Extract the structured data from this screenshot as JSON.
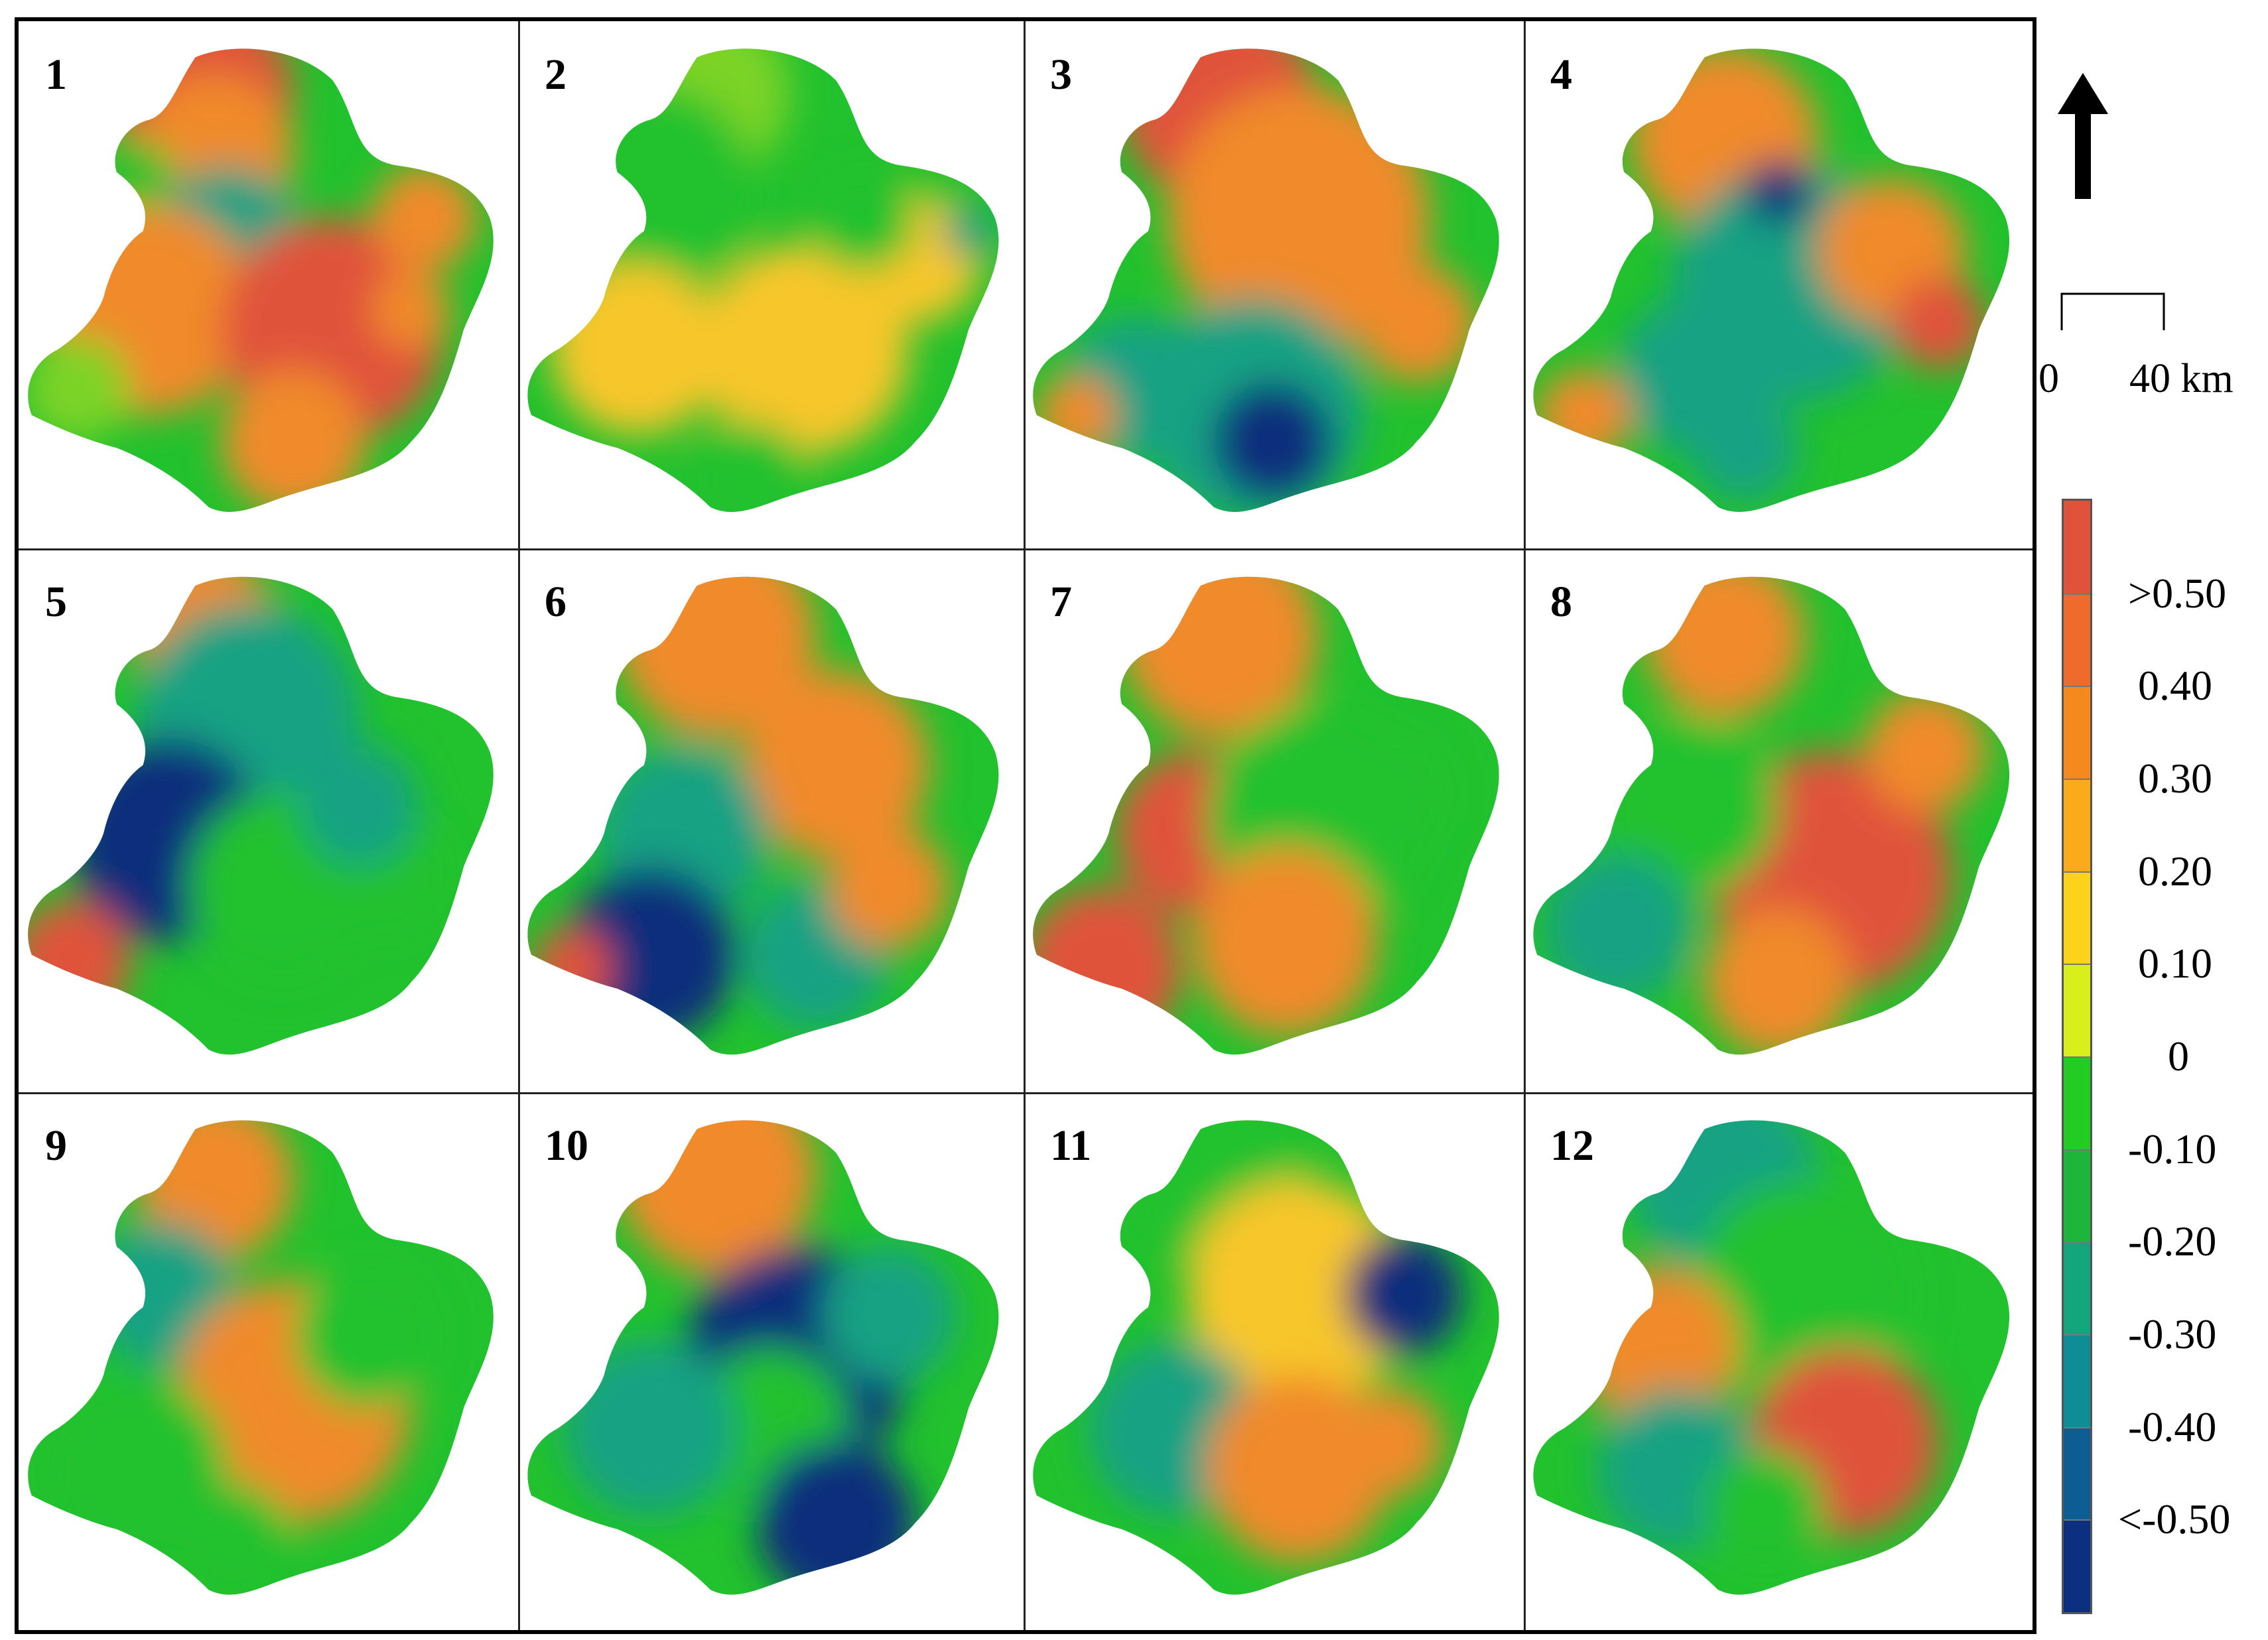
{
  "panels": [
    {
      "label": "1"
    },
    {
      "label": "2"
    },
    {
      "label": "3"
    },
    {
      "label": "4"
    },
    {
      "label": "5"
    },
    {
      "label": "6"
    },
    {
      "label": "7"
    },
    {
      "label": "8"
    },
    {
      "label": "9"
    },
    {
      "label": "10"
    },
    {
      "label": "11"
    },
    {
      "label": "12"
    }
  ],
  "scale": {
    "start": "0",
    "end": "40 km"
  },
  "legend": {
    "labels": [
      ">0.50",
      "0.40",
      "0.30",
      "0.20",
      "0.10",
      "0",
      "-0.10",
      "-0.20",
      "-0.30",
      "-0.40",
      "<-0.50"
    ],
    "colors": [
      "#e0533a",
      "#ee6b2c",
      "#f5891e",
      "#fbaa1a",
      "#fdd21b",
      "#d8ef1c",
      "#22cc22",
      "#1db53a",
      "#13a57b",
      "#0f8d97",
      "#0d5c92",
      "#0c2f80"
    ]
  },
  "palette": {
    "red": "#e0533a",
    "orange": "#f08a2a",
    "yellow": "#f7c62a",
    "lightgreen": "#7cd327",
    "green": "#22c12e",
    "teal": "#13a283",
    "blue": "#0f7395",
    "navy": "#0c2f7c"
  }
}
